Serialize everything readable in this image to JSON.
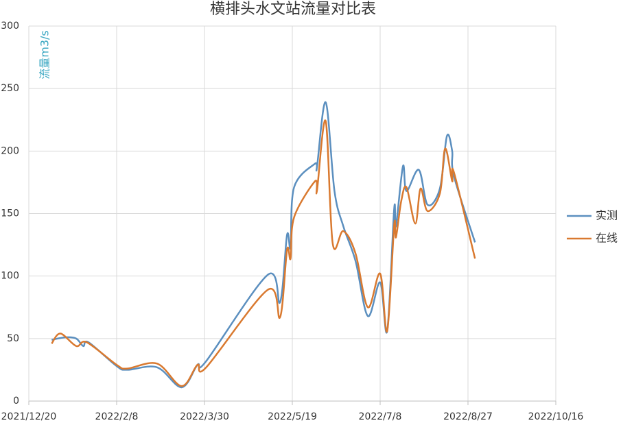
{
  "chart_data": {
    "type": "line",
    "title": "横排头水文站流量对比表",
    "y_label": "流量m3/s",
    "xlim": [
      "2021/12/20",
      "2022/10/16"
    ],
    "xticks": [
      "2021/12/20",
      "2022/2/8",
      "2022/3/30",
      "2022/5/19",
      "2022/7/8",
      "2022/8/27",
      "2022/10/16"
    ],
    "ylim": [
      0,
      300
    ],
    "yticks": [
      0,
      50,
      100,
      150,
      200,
      250,
      300
    ],
    "grid": true,
    "legend": "right",
    "series": [
      {
        "name": "实测",
        "color": "#5b8fbf",
        "x": [
          "2022/1/2",
          "2022/1/10",
          "2022/1/16",
          "2022/1/20",
          "2022/1/23",
          "2022/2/8",
          "2022/2/14",
          "2022/3/3",
          "2022/3/17",
          "2022/3/26",
          "2022/3/31",
          "2022/5/5",
          "2022/5/12",
          "2022/5/16",
          "2022/5/18",
          "2022/5/20",
          "2022/6/1",
          "2022/6/2",
          "2022/6/7",
          "2022/6/12",
          "2022/6/17",
          "2022/6/24",
          "2022/7/1",
          "2022/7/8",
          "2022/7/12",
          "2022/7/16",
          "2022/7/17",
          "2022/7/21",
          "2022/7/23",
          "2022/7/30",
          "2022/8/4",
          "2022/8/11",
          "2022/8/15",
          "2022/8/18",
          "2022/8/19",
          "2022/8/31"
        ],
        "values": [
          49,
          51,
          50,
          44,
          47,
          28,
          25,
          27,
          11,
          29,
          32,
          101,
          79,
          133,
          123,
          171,
          190,
          187,
          239,
          168,
          140,
          112,
          68,
          95,
          56,
          154,
          140,
          188,
          168,
          185,
          157,
          170,
          212,
          200,
          180,
          127
        ]
      },
      {
        "name": "在线",
        "color": "#d9792f",
        "x": [
          "2022/1/2",
          "2022/1/7",
          "2022/1/16",
          "2022/1/22",
          "2022/2/8",
          "2022/2/14",
          "2022/3/3",
          "2022/3/17",
          "2022/3/26",
          "2022/3/31",
          "2022/5/5",
          "2022/5/12",
          "2022/5/16",
          "2022/5/18",
          "2022/5/20",
          "2022/6/1",
          "2022/6/2",
          "2022/6/7",
          "2022/6/11",
          "2022/6/17",
          "2022/6/24",
          "2022/7/1",
          "2022/7/8",
          "2022/7/12",
          "2022/7/16",
          "2022/7/17",
          "2022/7/20",
          "2022/7/23",
          "2022/7/28",
          "2022/7/31",
          "2022/8/4",
          "2022/8/11",
          "2022/8/14",
          "2022/8/18",
          "2022/8/19",
          "2022/8/31"
        ],
        "values": [
          46,
          54,
          44,
          47,
          29,
          26,
          30,
          12,
          29,
          27,
          89,
          67,
          121,
          114,
          147,
          176,
          168,
          224,
          126,
          136,
          118,
          75,
          102,
          56,
          141,
          131,
          160,
          171,
          142,
          170,
          152,
          166,
          202,
          176,
          183,
          114
        ]
      }
    ]
  }
}
